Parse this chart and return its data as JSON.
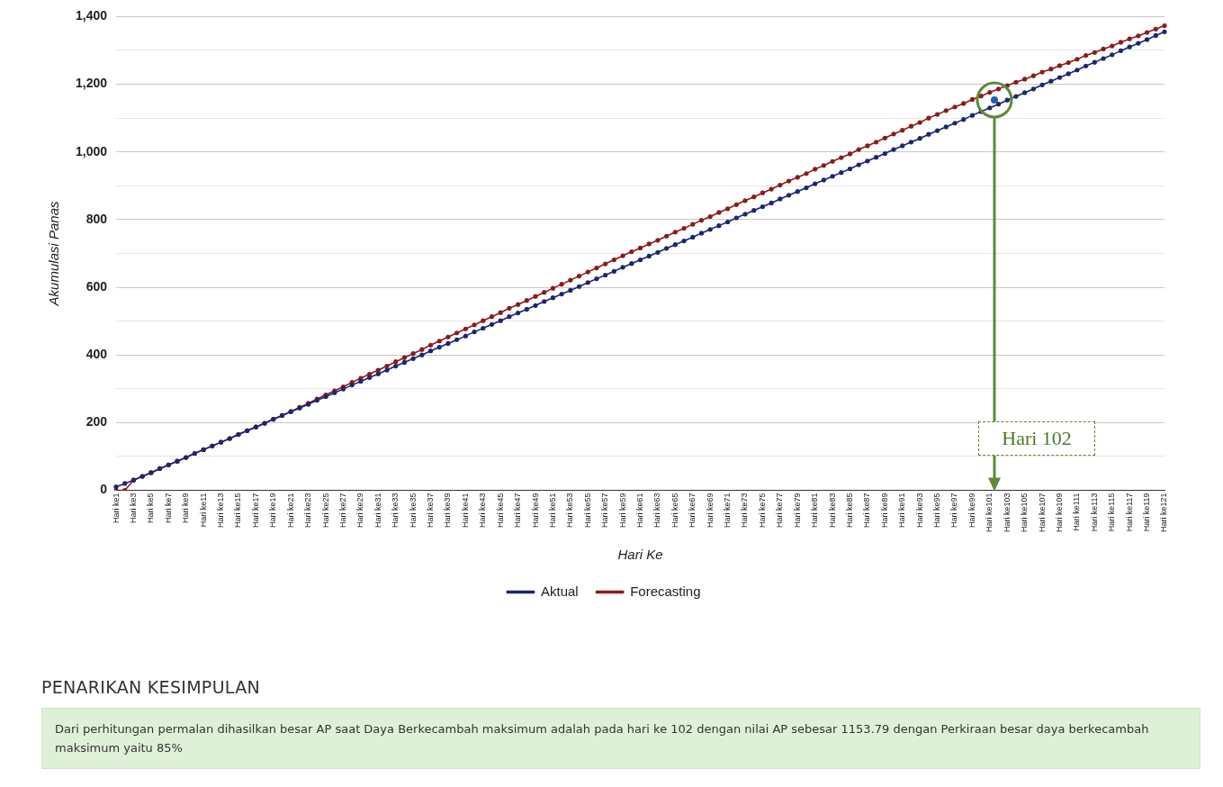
{
  "chart_data": {
    "type": "line",
    "xlabel": "Hari Ke",
    "ylabel": "Akumulasi Panas",
    "categories": [
      "Hari ke1",
      null,
      "Hari ke3",
      null,
      "Hari ke5",
      null,
      "Hari ke7",
      null,
      "Hari ke9",
      null,
      "Hari ke11",
      null,
      "Hari ke13",
      null,
      "Hari ke15",
      null,
      "Hari ke17",
      null,
      "Hari ke19",
      null,
      "Hari ke21",
      null,
      "Hari ke23",
      null,
      "Hari ke25",
      null,
      "Hari ke27",
      null,
      "Hari ke29",
      null,
      "Hari ke31",
      null,
      "Hari ke33",
      null,
      "Hari ke35",
      null,
      "Hari ke37",
      null,
      "Hari ke39",
      null,
      "Hari ke41",
      null,
      "Hari ke43",
      null,
      "Hari ke45",
      null,
      "Hari ke47",
      null,
      "Hari ke49",
      null,
      "Hari ke51",
      null,
      "Hari ke53",
      null,
      "Hari ke55",
      null,
      "Hari ke57",
      null,
      "Hari ke59",
      null,
      "Hari ke61",
      null,
      "Hari ke63",
      null,
      "Hari ke65",
      null,
      "Hari ke67",
      null,
      "Hari ke69",
      null,
      "Hari ke71",
      null,
      "Hari ke73",
      null,
      "Hari ke75",
      null,
      "Hari ke77",
      null,
      "Hari ke79",
      null,
      "Hari ke81",
      null,
      "Hari ke83",
      null,
      "Hari ke85",
      null,
      "Hari ke87",
      null,
      "Hari ke89",
      null,
      "Hari ke91",
      null,
      "Hari ke93",
      null,
      "Hari ke95",
      null,
      "Hari ke97",
      null,
      "Hari ke99",
      null,
      "Hari ke101",
      null,
      "Hari ke103",
      null,
      "Hari ke105",
      null,
      "Hari ke107",
      null,
      "Hari ke109",
      null,
      "Hari ke111",
      null,
      "Hari ke113",
      null,
      "Hari ke115",
      null,
      "Hari ke117",
      null,
      "Hari ke119",
      null,
      "Hari ke121"
    ],
    "series": [
      {
        "name": "Aktual",
        "color": "#1c2673",
        "values": [
          10,
          20,
          30,
          41,
          52,
          64,
          75,
          86,
          97,
          109,
          120,
          131,
          142,
          153,
          165,
          176,
          187,
          198,
          210,
          221,
          232,
          243,
          254,
          266,
          277,
          288,
          299,
          311,
          322,
          333,
          344,
          355,
          367,
          378,
          389,
          400,
          412,
          423,
          434,
          445,
          456,
          468,
          479,
          490,
          501,
          513,
          524,
          535,
          546,
          558,
          569,
          580,
          591,
          602,
          614,
          625,
          636,
          647,
          659,
          670,
          681,
          692,
          703,
          715,
          726,
          737,
          748,
          760,
          771,
          782,
          793,
          805,
          816,
          827,
          838,
          849,
          861,
          872,
          883,
          894,
          906,
          917,
          928,
          939,
          950,
          962,
          973,
          984,
          995,
          1007,
          1018,
          1029,
          1040,
          1052,
          1063,
          1074,
          1085,
          1096,
          1108,
          1119,
          1130,
          1141,
          1153,
          1164,
          1175,
          1186,
          1198,
          1209,
          1220,
          1231,
          1242,
          1254,
          1265,
          1276,
          1287,
          1299,
          1310,
          1321,
          1332,
          1344,
          1355
        ]
      },
      {
        "name": "Forecasting",
        "color": "#8b1c1c",
        "values": [
          0,
          0,
          30,
          41,
          52,
          64,
          75,
          86,
          97,
          109,
          120,
          131,
          142,
          153,
          165,
          176,
          187,
          198,
          210,
          221,
          233,
          245,
          257,
          270,
          282,
          294,
          306,
          319,
          331,
          343,
          355,
          367,
          380,
          392,
          404,
          416,
          429,
          441,
          453,
          465,
          477,
          489,
          501,
          513,
          525,
          538,
          549,
          561,
          573,
          585,
          597,
          609,
          621,
          633,
          645,
          657,
          669,
          681,
          693,
          705,
          716,
          728,
          739,
          751,
          763,
          774,
          786,
          798,
          809,
          821,
          832,
          844,
          856,
          867,
          879,
          890,
          902,
          914,
          925,
          936,
          949,
          960,
          972,
          983,
          994,
          1007,
          1018,
          1029,
          1041,
          1053,
          1064,
          1076,
          1087,
          1100,
          1111,
          1122,
          1133,
          1143,
          1155,
          1165,
          1176,
          1186,
          1196,
          1206,
          1215,
          1225,
          1236,
          1245,
          1255,
          1264,
          1274,
          1285,
          1294,
          1304,
          1313,
          1324,
          1334,
          1343,
          1353,
          1363,
          1373
        ]
      }
    ],
    "ylim": [
      0,
      1400
    ],
    "yticks": [
      0,
      {
        "value": 100,
        "label": null
      },
      200,
      {
        "value": 300,
        "label": null
      },
      400,
      {
        "value": 500,
        "label": null
      },
      600,
      {
        "value": 700,
        "label": null
      },
      800,
      {
        "value": 900,
        "label": null
      },
      {
        "value": 1000,
        "label": "1,000"
      },
      {
        "value": 1100,
        "label": null
      },
      {
        "value": 1200,
        "label": "1,200"
      },
      {
        "value": 1300,
        "label": null
      },
      {
        "value": 1400,
        "label": "1,400"
      }
    ],
    "grid": "y",
    "legend": "bottom",
    "marker": "circle",
    "line_style": "solid",
    "annotations": [
      "Hari 102",
      "PENARIKAN KESIMPULAN",
      "Dari perhitungan permalan dihasilkan besar AP saat Daya Berkecambah maksimum adalah pada hari ke 102 dengan nilai AP sebesar 1153.79 dengan Perkiraan besar daya berkecambah maksimum yaitu 85%"
    ]
  }
}
